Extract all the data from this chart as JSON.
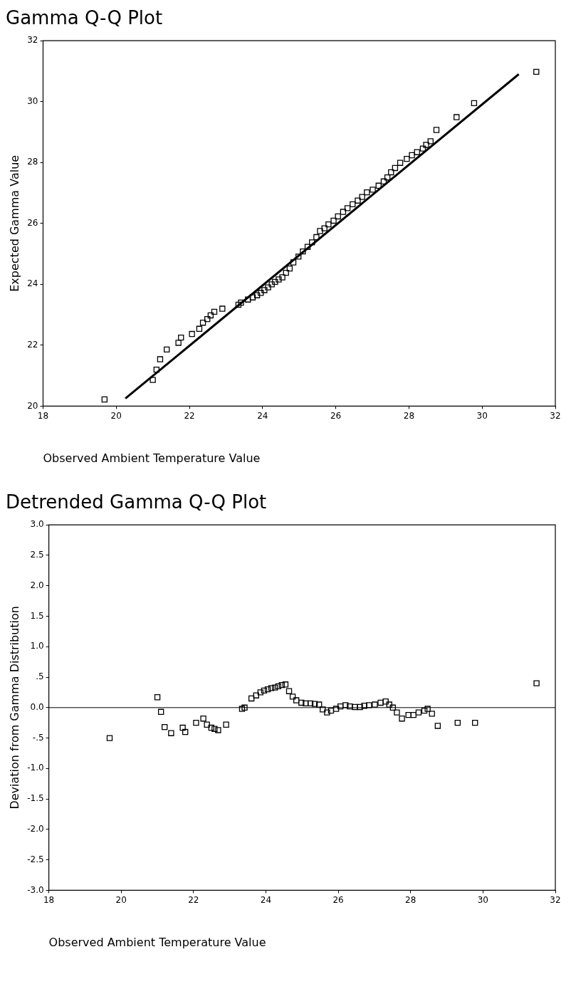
{
  "chart_data": [
    {
      "type": "scatter",
      "title": "Gamma Q-Q Plot",
      "xlabel": "Observed Ambient Temperature Value",
      "ylabel": "Expected Gamma Value",
      "xlim": [
        18,
        32
      ],
      "xticks": [
        18,
        20,
        22,
        24,
        26,
        28,
        30,
        32
      ],
      "ylim": [
        20,
        32
      ],
      "yticks": [
        20,
        22,
        24,
        26,
        28,
        30,
        32
      ],
      "grid": false,
      "legend": false,
      "marker": "square",
      "series": [
        {
          "color": "#000000",
          "x": [
            19.68,
            21.0,
            21.1,
            21.2,
            21.38,
            21.7,
            21.77,
            22.07,
            22.27,
            22.37,
            22.49,
            22.58,
            22.68,
            22.9,
            23.34,
            23.41,
            23.6,
            23.73,
            23.85,
            23.95,
            24.05,
            24.15,
            24.25,
            24.34,
            24.44,
            24.54,
            24.64,
            24.74,
            24.84,
            24.98,
            25.1,
            25.23,
            25.35,
            25.47,
            25.57,
            25.69,
            25.8,
            25.94,
            26.06,
            26.2,
            26.32,
            26.46,
            26.6,
            26.72,
            26.85,
            27.01,
            27.17,
            27.31,
            27.41,
            27.51,
            27.62,
            27.76,
            27.94,
            28.08,
            28.22,
            28.38,
            28.47,
            28.59,
            28.75,
            29.3,
            29.78,
            31.48
          ],
          "values": [
            20.22,
            20.86,
            21.2,
            21.54,
            21.86,
            22.08,
            22.25,
            22.37,
            22.54,
            22.74,
            22.86,
            22.98,
            23.1,
            23.2,
            23.33,
            23.4,
            23.5,
            23.57,
            23.64,
            23.72,
            23.81,
            23.9,
            24.0,
            24.08,
            24.16,
            24.23,
            24.38,
            24.52,
            24.72,
            24.91,
            25.08,
            25.23,
            25.38,
            25.55,
            25.75,
            25.84,
            25.97,
            26.09,
            26.23,
            26.38,
            26.5,
            26.63,
            26.75,
            26.87,
            27.02,
            27.11,
            27.24,
            27.38,
            27.51,
            27.68,
            27.82,
            27.99,
            28.12,
            28.24,
            28.34,
            28.46,
            28.58,
            28.7,
            29.07,
            29.49,
            29.95,
            30.98
          ]
        },
        {
          "type": "line",
          "color": "#000000",
          "marker": "none",
          "x": [
            20.25,
            31.0
          ],
          "values": [
            20.25,
            30.9
          ]
        }
      ]
    },
    {
      "type": "scatter",
      "title": "Detrended Gamma Q-Q Plot",
      "xlabel": "Observed Ambient Temperature Value",
      "ylabel": "Deviation from Gamma Distribution",
      "xlim": [
        18,
        32
      ],
      "xticks": [
        18,
        20,
        22,
        24,
        26,
        28,
        30,
        32
      ],
      "ylim": [
        -3,
        3
      ],
      "yticks": [
        {
          "value": 3,
          "label": "3.0"
        },
        {
          "value": 2.5,
          "label": "2.5"
        },
        {
          "value": 2,
          "label": "2.0"
        },
        {
          "value": 1.5,
          "label": "1.5"
        },
        {
          "value": 1,
          "label": "1.0"
        },
        {
          "value": 0.5,
          "label": ".5"
        },
        {
          "value": 0,
          "label": "0.0"
        },
        {
          "value": -0.5,
          "label": "-.5"
        },
        {
          "value": -1,
          "label": "-1.0"
        },
        {
          "value": -1.5,
          "label": "-1.5"
        },
        {
          "value": -2,
          "label": "-2.0"
        },
        {
          "value": -2.5,
          "label": "-2.5"
        },
        {
          "value": -3,
          "label": "-3.0"
        }
      ],
      "grid": false,
      "legend": false,
      "marker": "square",
      "ref_lines": [
        {
          "axis": "y",
          "value": 0,
          "color": "#000000"
        }
      ],
      "series": [
        {
          "color": "#000000",
          "x": [
            19.68,
            21.0,
            21.1,
            21.2,
            21.38,
            21.7,
            21.77,
            22.07,
            22.27,
            22.37,
            22.49,
            22.58,
            22.68,
            22.9,
            23.34,
            23.41,
            23.6,
            23.73,
            23.85,
            23.95,
            24.05,
            24.15,
            24.25,
            24.34,
            24.44,
            24.54,
            24.64,
            24.74,
            24.84,
            24.98,
            25.1,
            25.23,
            25.35,
            25.47,
            25.57,
            25.69,
            25.8,
            25.94,
            26.06,
            26.2,
            26.32,
            26.46,
            26.6,
            26.72,
            26.85,
            27.01,
            27.17,
            27.31,
            27.41,
            27.51,
            27.62,
            27.76,
            27.94,
            28.08,
            28.22,
            28.38,
            28.47,
            28.59,
            28.75,
            29.3,
            29.78,
            31.48
          ],
          "values": [
            -0.5,
            0.17,
            -0.07,
            -0.32,
            -0.42,
            -0.33,
            -0.4,
            -0.25,
            -0.18,
            -0.28,
            -0.33,
            -0.35,
            -0.37,
            -0.28,
            -0.02,
            0.0,
            0.15,
            0.2,
            0.25,
            0.28,
            0.3,
            0.32,
            0.33,
            0.35,
            0.37,
            0.38,
            0.27,
            0.18,
            0.12,
            0.08,
            0.07,
            0.07,
            0.06,
            0.05,
            -0.03,
            -0.08,
            -0.05,
            -0.02,
            0.02,
            0.04,
            0.02,
            0.01,
            0.01,
            0.03,
            0.04,
            0.05,
            0.08,
            0.1,
            0.05,
            0.0,
            -0.08,
            -0.18,
            -0.12,
            -0.12,
            -0.08,
            -0.05,
            -0.02,
            -0.1,
            -0.3,
            -0.25,
            -0.25,
            0.4
          ]
        }
      ]
    }
  ]
}
